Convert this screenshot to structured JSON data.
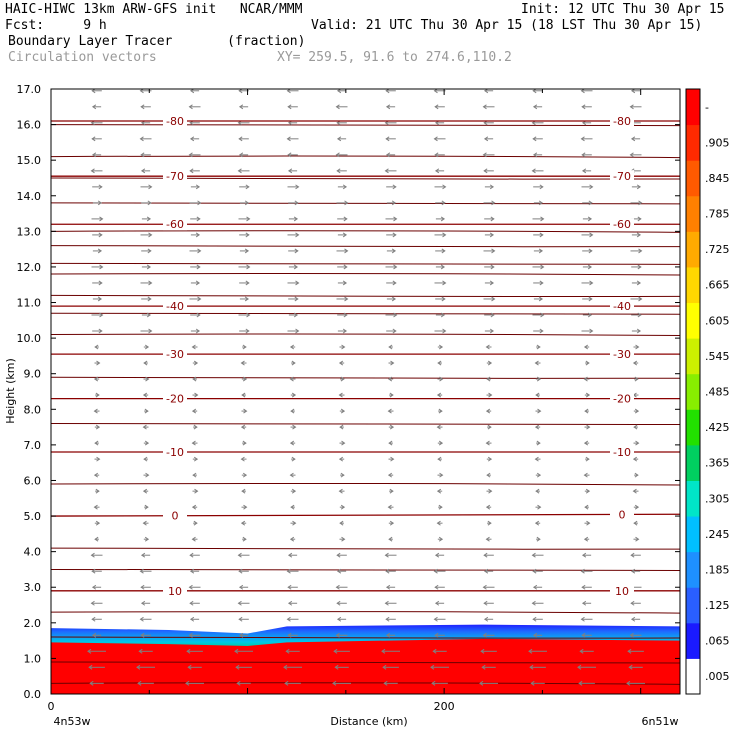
{
  "header": {
    "model": "HAIC-HIWC 13km ARW-GFS init",
    "org": "NCAR/MMM",
    "init": "Init: 12 UTC Thu 30 Apr 15",
    "fcst_label": "Fcst:",
    "fcst_value": "9 h",
    "valid": "Valid: 21 UTC Thu 30 Apr 15 (18 LST Thu 30 Apr 15)",
    "field": "Boundary Layer Tracer",
    "units": "(fraction)",
    "vectors": "Circulation vectors",
    "xy": "XY= 259.5, 91.6 to 274.6,110.2"
  },
  "chart_data": {
    "type": "heatmap",
    "xlabel": "Distance (km)",
    "ylabel": "Height (km)",
    "xlim": [
      0,
      320
    ],
    "ylim": [
      0,
      17
    ],
    "x_ticks": [
      0,
      200
    ],
    "x_tick_labels": [
      "0",
      "200"
    ],
    "x_end_labels": [
      "4n53w",
      "6n51w"
    ],
    "y_ticks": [
      "0.0",
      "1.0",
      "2.0",
      "3.0",
      "4.0",
      "5.0",
      "6.0",
      "7.0",
      "8.0",
      "9.0",
      "10.0",
      "11.0",
      "12.0",
      "13.0",
      "14.0",
      "15.0",
      "16.0",
      "17.0"
    ],
    "tracer_layer": {
      "x": [
        0,
        60,
        100,
        120,
        220,
        320
      ],
      "full_top": [
        1.45,
        1.4,
        1.35,
        1.45,
        1.55,
        1.5
      ],
      "fade_top": [
        1.85,
        1.8,
        1.7,
        1.9,
        1.95,
        1.9
      ]
    },
    "temperature_isotherms": [
      {
        "label": "10",
        "y": [
          2.9,
          2.9
        ]
      },
      {
        "label": "0",
        "y": [
          5.0,
          5.05
        ]
      },
      {
        "label": "-10",
        "y": [
          6.8,
          6.8
        ]
      },
      {
        "label": "-20",
        "y": [
          8.3,
          8.3
        ]
      },
      {
        "label": "-30",
        "y": [
          9.55,
          9.55
        ]
      },
      {
        "label": "-40",
        "y": [
          10.9,
          10.9
        ]
      },
      {
        "label": "-60",
        "y": [
          13.2,
          13.2
        ]
      },
      {
        "label": "-70",
        "y": [
          14.55,
          14.55
        ]
      },
      {
        "label": "-80",
        "y": [
          16.1,
          16.1
        ]
      }
    ],
    "theta_lines": [
      0.3,
      0.9,
      1.6,
      2.3,
      3.5,
      4.1,
      5.9,
      7.6,
      8.9,
      10.1,
      10.7,
      11.2,
      11.8,
      12.1,
      12.6,
      13.0,
      13.8,
      14.5,
      15.1,
      16.0
    ],
    "colorbar": {
      "labels": [
        ".005",
        ".065",
        ".125",
        ".185",
        ".245",
        ".305",
        ".365",
        ".425",
        ".485",
        ".545",
        ".605",
        ".665",
        ".725",
        ".785",
        ".845",
        ".905",
        "-"
      ],
      "colors": [
        "#ffffff",
        "#1a1aff",
        "#2a5fff",
        "#1e90ff",
        "#00bfff",
        "#00e5c8",
        "#00d060",
        "#22e000",
        "#88ee00",
        "#ccf000",
        "#ffff00",
        "#ffd700",
        "#ffaa00",
        "#ff8000",
        "#ff5a00",
        "#ff2a00",
        "#ff0000"
      ]
    },
    "vector_layers": [
      {
        "y_from": 0.2,
        "y_to": 1.5,
        "direction": "west",
        "strength": "strong"
      },
      {
        "y_from": 1.5,
        "y_to": 4.0,
        "direction": "west",
        "strength": "moderate"
      },
      {
        "y_from": 4.0,
        "y_to": 10.0,
        "direction": "mixed",
        "strength": "weak"
      },
      {
        "y_from": 10.0,
        "y_to": 14.5,
        "direction": "east",
        "strength": "moderate"
      },
      {
        "y_from": 14.5,
        "y_to": 17.0,
        "direction": "west",
        "strength": "moderate"
      }
    ]
  },
  "colors": {
    "isotherm": "#8b0000",
    "theta": "#6b0000",
    "vector": "#808080",
    "tracer_full": "#ff0000"
  }
}
